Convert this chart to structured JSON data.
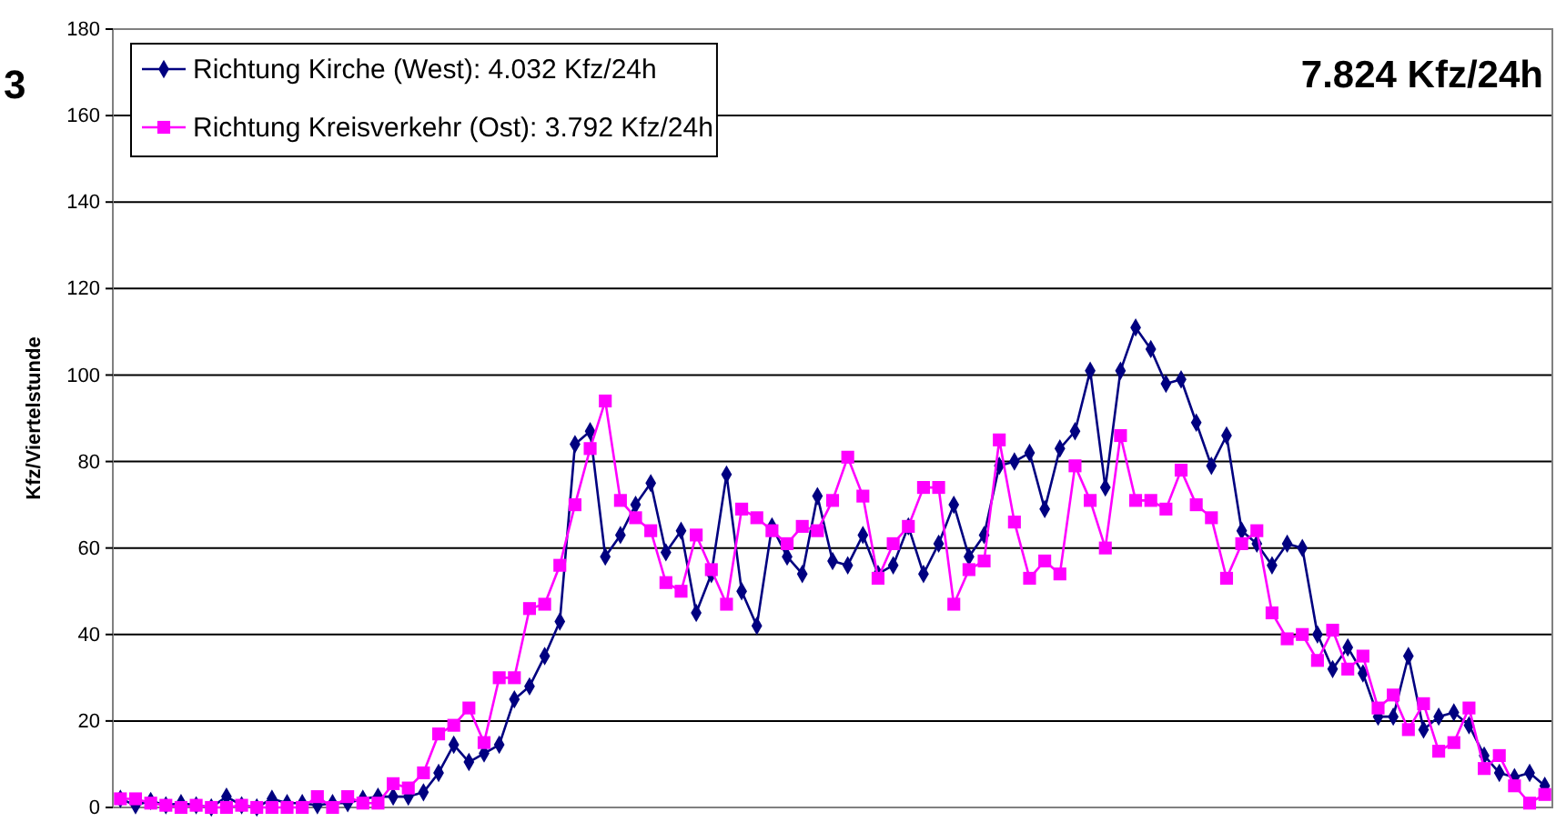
{
  "chart_data": {
    "type": "line",
    "ylabel": "Kfz/Viertelstunde",
    "annotations": [
      "3",
      "7.824 Kfz/24h"
    ],
    "categories": [
      null,
      null,
      null,
      null,
      null,
      null,
      null,
      null,
      null,
      null,
      null,
      null,
      null,
      null,
      null,
      null,
      null,
      null,
      null,
      null,
      null,
      null,
      null,
      null,
      null,
      null,
      null,
      null,
      null,
      null,
      null,
      null,
      null,
      null,
      null,
      null,
      null,
      null,
      null,
      null,
      null,
      null,
      null,
      null,
      null,
      null,
      null,
      null,
      null,
      null,
      null,
      null,
      null,
      null,
      null,
      null,
      null,
      null,
      null,
      null,
      null,
      null,
      null,
      null,
      null,
      null,
      null,
      null,
      null,
      null,
      null,
      null,
      null,
      null,
      null,
      null,
      null,
      null,
      null,
      null,
      null,
      null,
      null,
      null,
      null,
      null,
      null,
      null,
      null,
      null,
      null,
      null,
      null,
      null,
      null
    ],
    "series": [
      {
        "name": "Richtung Kirche (West): 4.032 Kfz/24h",
        "color": "#000080",
        "marker": "diamond",
        "values": [
          2,
          0.5,
          1.5,
          0.5,
          1,
          0.5,
          0,
          2.5,
          0.5,
          0,
          2,
          1,
          1,
          0.5,
          1,
          1,
          2,
          2.5,
          2.5,
          2.5,
          3.5,
          8,
          14.5,
          10.5,
          12.5,
          14.5,
          25,
          28,
          35,
          43,
          84,
          87,
          58,
          63,
          70,
          75,
          59,
          64,
          45,
          54,
          77,
          50,
          42,
          65,
          58,
          54,
          72,
          57,
          56,
          63,
          54,
          56,
          65,
          54,
          61,
          70,
          58,
          63,
          79,
          80,
          82,
          69,
          83,
          87,
          101,
          74,
          101,
          111,
          106,
          98,
          99,
          89,
          79,
          86,
          64,
          61,
          56,
          61,
          60,
          40,
          32,
          37,
          31,
          21,
          21,
          35,
          18,
          21,
          22,
          19,
          12,
          8,
          7,
          8,
          5
        ]
      },
      {
        "name": "Richtung Kreisverkehr (Ost): 3.792 Kfz/24h",
        "color": "#ff00ff",
        "marker": "square",
        "values": [
          2,
          2,
          1,
          0.5,
          0,
          0.5,
          0,
          0,
          0.5,
          0,
          0,
          0,
          0,
          2.5,
          0,
          2.5,
          1,
          1,
          5.5,
          4.5,
          8,
          17,
          19,
          23,
          15,
          30,
          30,
          46,
          47,
          56,
          70,
          83,
          94,
          71,
          67,
          64,
          52,
          50,
          63,
          55,
          47,
          69,
          67,
          64,
          61,
          65,
          64,
          71,
          81,
          72,
          53,
          61,
          65,
          74,
          74,
          47,
          55,
          57,
          85,
          66,
          53,
          57,
          54,
          79,
          71,
          60,
          86,
          71,
          71,
          69,
          78,
          70,
          67,
          53,
          61,
          64,
          45,
          39,
          40,
          34,
          41,
          32,
          35,
          23,
          26,
          18,
          24,
          13,
          15,
          23,
          9,
          12,
          5,
          1,
          3
        ]
      }
    ],
    "ylim": [
      0,
      180
    ],
    "yticks": [
      0,
      20,
      40,
      60,
      80,
      100,
      120,
      140,
      160,
      180
    ],
    "grid": "y",
    "legend": "top left",
    "tick_labels": "y",
    "line_style": "solid"
  }
}
